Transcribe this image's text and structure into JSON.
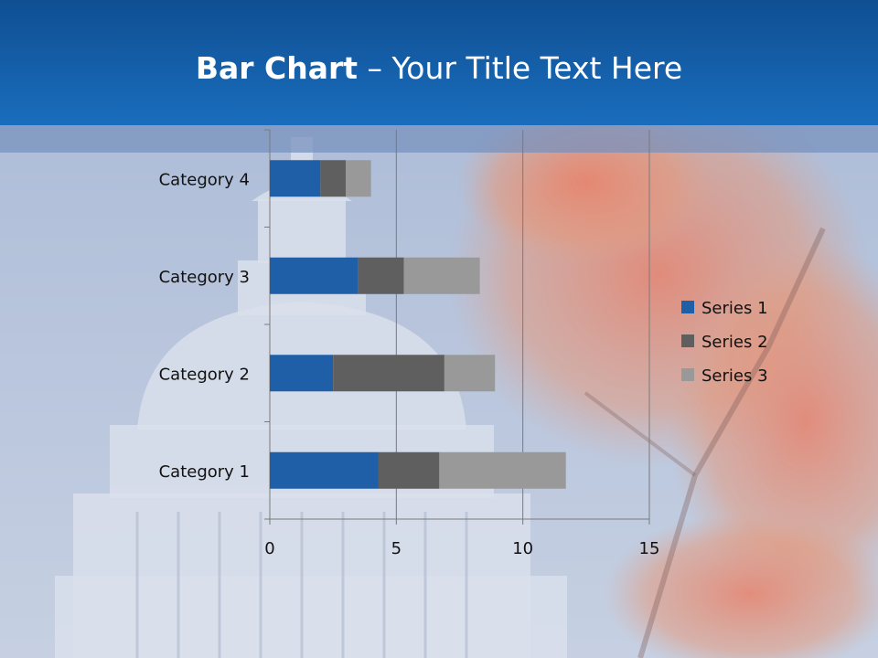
{
  "slide": {
    "title_bold": "Bar Chart",
    "title_rest": " – Your Title Text Here"
  },
  "chart_data": {
    "type": "bar",
    "orientation": "horizontal",
    "stacked": true,
    "categories": [
      "Category 1",
      "Category 2",
      "Category 3",
      "Category 4"
    ],
    "series": [
      {
        "name": "Series 1",
        "values": [
          4.3,
          2.5,
          3.5,
          2.0
        ],
        "color": "#1f5fa8"
      },
      {
        "name": "Series 2",
        "values": [
          2.4,
          4.4,
          1.8,
          1.0
        ],
        "color": "#5f5f5f"
      },
      {
        "name": "Series 3",
        "values": [
          5.0,
          2.0,
          3.0,
          1.0
        ],
        "color": "#999999"
      }
    ],
    "xlim": [
      0,
      15
    ],
    "xticks": [
      0,
      5,
      10,
      15
    ],
    "grid": true,
    "legend": "right"
  }
}
